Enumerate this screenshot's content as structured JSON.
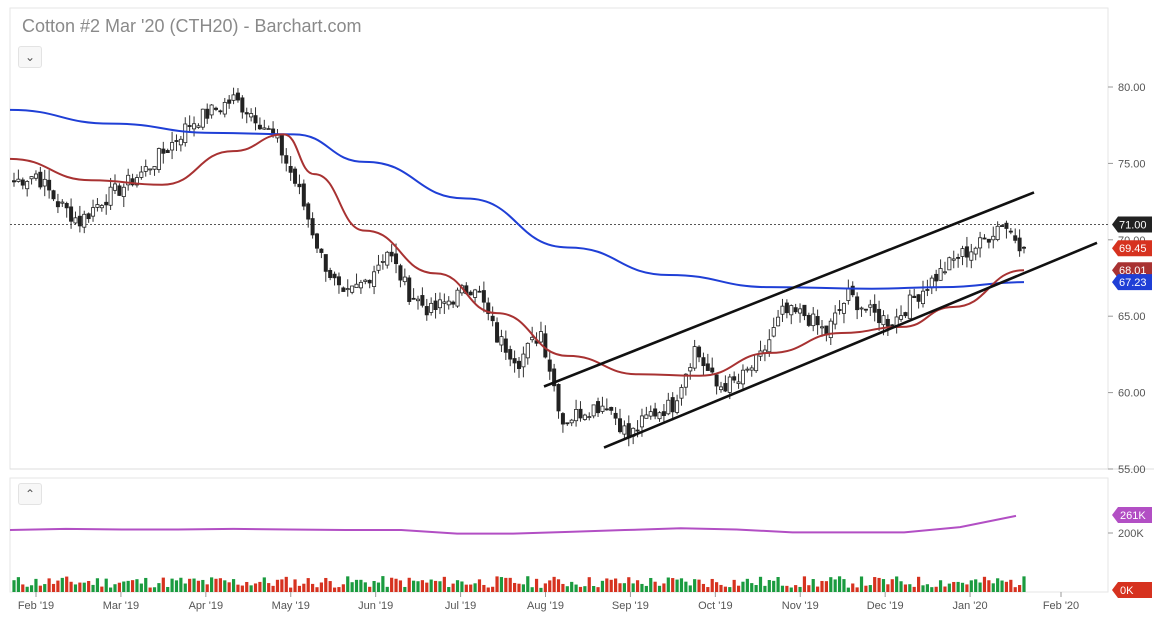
{
  "title": "Cotton #2 Mar '20 (CTH20) - Barchart.com",
  "colors": {
    "up": "#1a9b3f",
    "down": "#d6321f",
    "ma_long": "#1f3fd6",
    "ma_short": "#a83232",
    "volume_ma": "#b24fc4",
    "current_price_tag": "#222222",
    "last_close_tag": "#d6321f"
  },
  "icons": {
    "price_pane_toggle": "chevron-down-icon",
    "volume_pane_toggle": "chevron-up-icon"
  },
  "controls": {
    "price_pane_toggle": "⌄",
    "volume_pane_toggle": "⌃"
  },
  "chart_data": [
    {
      "type": "candlestick",
      "title": "Cotton #2 Mar '20 (CTH20) - Barchart.com",
      "x_tick_labels": [
        "Feb '19",
        "Mar '19",
        "Apr '19",
        "May '19",
        "Jun '19",
        "Jul '19",
        "Aug '19",
        "Sep '19",
        "Oct '19",
        "Nov '19",
        "Dec '19",
        "Jan '20",
        "Feb '20"
      ],
      "y_tick_labels": [
        "55.00",
        "60.00",
        "65.00",
        "70.00",
        "75.00",
        "80.00"
      ],
      "ylim": [
        55,
        82
      ],
      "grid": false,
      "price_tags": [
        {
          "label": "71.00",
          "value": 71.0,
          "color": "#222222"
        },
        {
          "label": "69.45",
          "value": 69.45,
          "color": "#d6321f"
        },
        {
          "label": "68.01",
          "value": 68.01,
          "color": "#a83232"
        },
        {
          "label": "67.23",
          "value": 67.23,
          "color": "#1f3fd6"
        }
      ],
      "reference_line": {
        "value": 71.0,
        "style": "dotted"
      },
      "ohlc_series_note": "Daily candles, weekly anchor closes below (interpolated between weeks)",
      "weekly_closes": [
        [
          "Feb '19",
          73.8
        ],
        [
          "",
          74.3
        ],
        [
          "",
          72.4
        ],
        [
          "",
          71.2
        ],
        [
          "Mar '19",
          72.6
        ],
        [
          "",
          73.5
        ],
        [
          "",
          74.6
        ],
        [
          "",
          76.0
        ],
        [
          "Apr '19",
          77.6
        ],
        [
          "",
          78.4
        ],
        [
          "",
          79.2
        ],
        [
          "",
          78.1
        ],
        [
          "May '19",
          76.4
        ],
        [
          "",
          73.1
        ],
        [
          "",
          68.9
        ],
        [
          "",
          66.1
        ],
        [
          "Jun '19",
          67.3
        ],
        [
          "",
          69.3
        ],
        [
          "",
          66.5
        ],
        [
          "",
          65.3
        ],
        [
          "Jul '19",
          66.2
        ],
        [
          "",
          67.1
        ],
        [
          "",
          63.6
        ],
        [
          "",
          62.1
        ],
        [
          "Aug '19",
          64.0
        ],
        [
          "",
          58.1
        ],
        [
          "",
          58.9
        ],
        [
          "",
          59.3
        ],
        [
          "Sep '19",
          57.1
        ],
        [
          "",
          58.6
        ],
        [
          "",
          59.2
        ],
        [
          "",
          62.9
        ],
        [
          "Oct '19",
          60.4
        ],
        [
          "",
          60.7
        ],
        [
          "",
          62.3
        ],
        [
          "",
          65.2
        ],
        [
          "Nov '19",
          65.1
        ],
        [
          "",
          63.9
        ],
        [
          "",
          66.4
        ],
        [
          "",
          65.2
        ],
        [
          "Dec '19",
          64.6
        ],
        [
          "",
          66.2
        ],
        [
          "",
          67.6
        ],
        [
          "",
          68.9
        ],
        [
          "Jan '20",
          69.7
        ],
        [
          "",
          71.2
        ],
        [
          "",
          69.45
        ]
      ],
      "moving_averages": [
        {
          "name": "",
          "color": "#1f3fd6",
          "points": [
            [
              0,
              78.5
            ],
            [
              0.1,
              77.6
            ],
            [
              0.2,
              77.0
            ],
            [
              0.28,
              76.9
            ],
            [
              0.35,
              75.1
            ],
            [
              0.45,
              72.7
            ],
            [
              0.55,
              69.5
            ],
            [
              0.65,
              67.7
            ],
            [
              0.75,
              66.9
            ],
            [
              0.85,
              66.8
            ],
            [
              0.92,
              66.9
            ],
            [
              1.0,
              67.23
            ]
          ]
        },
        {
          "name": "",
          "color": "#a83232",
          "points": [
            [
              0,
              75.3
            ],
            [
              0.08,
              73.9
            ],
            [
              0.15,
              73.6
            ],
            [
              0.22,
              75.8
            ],
            [
              0.27,
              76.9
            ],
            [
              0.3,
              74.3
            ],
            [
              0.35,
              70.6
            ],
            [
              0.42,
              67.8
            ],
            [
              0.48,
              65.2
            ],
            [
              0.55,
              62.4
            ],
            [
              0.62,
              61.2
            ],
            [
              0.68,
              61.1
            ],
            [
              0.75,
              62.6
            ],
            [
              0.82,
              63.9
            ],
            [
              0.88,
              64.3
            ],
            [
              0.93,
              65.6
            ],
            [
              1.0,
              68.01
            ]
          ]
        }
      ],
      "trendlines": [
        {
          "x": [
            "Aug '19",
            "Jan '20"
          ],
          "y": [
            60.4,
            73.1
          ]
        },
        {
          "x": [
            "Sep '19",
            "Feb '20"
          ],
          "y": [
            56.4,
            69.8
          ]
        }
      ]
    },
    {
      "type": "bar",
      "title": "",
      "y_tick_labels": [
        "200K"
      ],
      "value_tags": [
        {
          "label": "261K",
          "color": "#b24fc4"
        },
        {
          "label": "0K",
          "color": "#d6321f"
        }
      ],
      "volume_ma_level_k": [
        210,
        214,
        212,
        212,
        214,
        212,
        210,
        210,
        198,
        198,
        204,
        210,
        216,
        212,
        202,
        202,
        202,
        220,
        258
      ]
    }
  ]
}
